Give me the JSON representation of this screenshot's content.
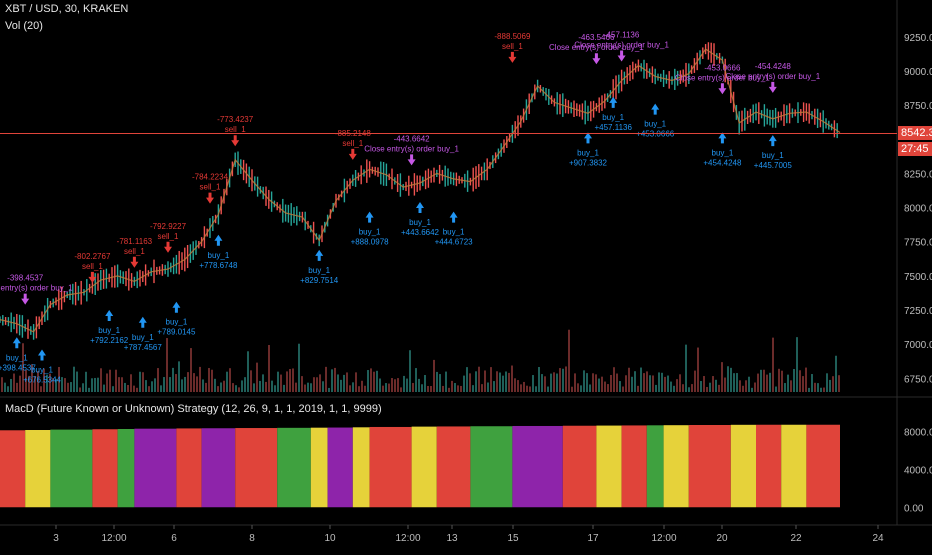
{
  "header": {
    "symbol_line": "XBT / USD, 30, KRAKEN",
    "volume_line": "Vol (20)"
  },
  "indicator_pane": {
    "label": "MacD (Future Known or Unknown) Strategy (12, 26, 9, 1, 1, 2019, 1, 1, 9999)"
  },
  "price_axis": {
    "ticks": [
      "9250.0",
      "9000.0",
      "8750.0",
      "8250.0",
      "8000.0",
      "7750.0",
      "7500.0",
      "7250.0",
      "7000.0",
      "6750.0"
    ],
    "last_price": "8542.3",
    "countdown": "27:45",
    "last_price_color": "#e0443a",
    "countdown_color": "#e0443a"
  },
  "indicator_axis": {
    "ticks": [
      "8000.00",
      "4000.00",
      "0.00"
    ]
  },
  "time_axis": {
    "ticks": [
      "3",
      "12:00",
      "6",
      "8",
      "10",
      "12:00",
      "13",
      "15",
      "17",
      "12:00",
      "20",
      "22",
      "24"
    ]
  },
  "colors": {
    "up": "#26a69a",
    "down": "#ef5350",
    "buy": "#2196f3",
    "sell": "#e53935",
    "close": "#c658e6",
    "band_red": "#e0443a",
    "band_green": "#3fa13f",
    "band_purple": "#8e24aa",
    "band_yellow": "#e6d23a"
  },
  "chart_data": {
    "type": "line",
    "price_series": {
      "name": "",
      "x_index": [
        0,
        2,
        4,
        6,
        8,
        10,
        12,
        14,
        16,
        18,
        20,
        22,
        24,
        26,
        28,
        30,
        32,
        34,
        36,
        38,
        40,
        42,
        44,
        46,
        48,
        50,
        52,
        54,
        56,
        58,
        60,
        62,
        64,
        66,
        68,
        70,
        72,
        74,
        76,
        78,
        80,
        82,
        84,
        86,
        88,
        90,
        92,
        94,
        96,
        98,
        100
      ],
      "values": [
        7180,
        7150,
        7090,
        7290,
        7360,
        7380,
        7470,
        7500,
        7460,
        7530,
        7550,
        7620,
        7750,
        7950,
        8350,
        8200,
        8060,
        7960,
        7930,
        7760,
        8050,
        8200,
        8280,
        8240,
        8150,
        8180,
        8250,
        8210,
        8190,
        8280,
        8450,
        8630,
        8890,
        8770,
        8730,
        8690,
        8780,
        8930,
        9040,
        8960,
        8930,
        8980,
        9160,
        9080,
        8620,
        8700,
        8650,
        8690,
        8700,
        8630,
        8550
      ]
    },
    "markers": [
      {
        "side": "close",
        "label": "Close entry(s) order buy_1",
        "value": "-398.4537",
        "x": 3,
        "price": 7260
      },
      {
        "side": "buy",
        "label": "buy_1",
        "value": "+398.4537",
        "x": 2,
        "price": 7080
      },
      {
        "side": "buy",
        "label": "buy_1",
        "value": "+676.5344",
        "x": 5,
        "price": 6990
      },
      {
        "side": "sell",
        "label": "sell_1",
        "value": "-802.2767",
        "x": 11,
        "price": 7420
      },
      {
        "side": "buy",
        "label": "buy_1",
        "value": "+792.2162",
        "x": 13,
        "price": 7280
      },
      {
        "side": "sell",
        "label": "sell_1",
        "value": "-781.1163",
        "x": 16,
        "price": 7530
      },
      {
        "side": "buy",
        "label": "buy_1",
        "value": "+787.4567",
        "x": 17,
        "price": 7230
      },
      {
        "side": "sell",
        "label": "sell_1",
        "value": "-792.9227",
        "x": 20,
        "price": 7640
      },
      {
        "side": "buy",
        "label": "buy_1",
        "value": "+789.0145",
        "x": 21,
        "price": 7340
      },
      {
        "side": "sell",
        "label": "sell_1",
        "value": "-784.2234",
        "x": 25,
        "price": 8000
      },
      {
        "side": "buy",
        "label": "buy_1",
        "value": "+778.6748",
        "x": 26,
        "price": 7830
      },
      {
        "side": "sell",
        "label": "sell_1",
        "value": "-773.4237",
        "x": 28,
        "price": 8420
      },
      {
        "side": "buy",
        "label": "buy_1",
        "value": "+829.7514",
        "x": 38,
        "price": 7720
      },
      {
        "side": "sell",
        "label": "sell_1",
        "value": "-885.2148",
        "x": 42,
        "price": 8320
      },
      {
        "side": "buy",
        "label": "buy_1",
        "value": "+888.0978",
        "x": 44,
        "price": 8000
      },
      {
        "side": "close",
        "label": "Close entry(s) order buy_1",
        "value": "-443.6642",
        "x": 49,
        "price": 8280
      },
      {
        "side": "buy",
        "label": "buy_1",
        "value": "+443.6642",
        "x": 50,
        "price": 8070
      },
      {
        "side": "buy",
        "label": "buy_1",
        "value": "+444.6723",
        "x": 54,
        "price": 8000
      },
      {
        "side": "sell",
        "label": "sell_1",
        "value": "-888.5069",
        "x": 61,
        "price": 9030
      },
      {
        "side": "buy",
        "label": "buy_1",
        "value": "+907.3832",
        "x": 70,
        "price": 8580
      },
      {
        "side": "close",
        "label": "Close entry(s) order buy_1",
        "value": "-463.5466",
        "x": 71,
        "price": 9020
      },
      {
        "side": "close",
        "label": "Close entry(s) order buy_1",
        "value": "-457.1136",
        "x": 74,
        "price": 9040
      },
      {
        "side": "buy",
        "label": "buy_1",
        "value": "+457.1136",
        "x": 73,
        "price": 8840
      },
      {
        "side": "buy",
        "label": "buy_1",
        "value": "+453.0666",
        "x": 78,
        "price": 8790
      },
      {
        "side": "close",
        "label": "Close entry(s) order buy_1",
        "value": "-453.0666",
        "x": 86,
        "price": 8800
      },
      {
        "side": "buy",
        "label": "buy_1",
        "value": "+454.4248",
        "x": 86,
        "price": 8580
      },
      {
        "side": "close",
        "label": "Close entry(s) order buy_1",
        "value": "-454.4248",
        "x": 92,
        "price": 8810
      },
      {
        "side": "buy",
        "label": "buy_1",
        "value": "+445.7005",
        "x": 92,
        "price": 8560
      }
    ],
    "indicator_bands": [
      {
        "from": 0,
        "to": 3,
        "color": "band_red"
      },
      {
        "from": 3,
        "to": 6,
        "color": "band_yellow"
      },
      {
        "from": 6,
        "to": 11,
        "color": "band_green"
      },
      {
        "from": 11,
        "to": 14,
        "color": "band_red"
      },
      {
        "from": 14,
        "to": 16,
        "color": "band_green"
      },
      {
        "from": 16,
        "to": 21,
        "color": "band_purple"
      },
      {
        "from": 21,
        "to": 24,
        "color": "band_red"
      },
      {
        "from": 24,
        "to": 28,
        "color": "band_purple"
      },
      {
        "from": 28,
        "to": 33,
        "color": "band_red"
      },
      {
        "from": 33,
        "to": 37,
        "color": "band_green"
      },
      {
        "from": 37,
        "to": 39,
        "color": "band_yellow"
      },
      {
        "from": 39,
        "to": 42,
        "color": "band_purple"
      },
      {
        "from": 42,
        "to": 44,
        "color": "band_yellow"
      },
      {
        "from": 44,
        "to": 49,
        "color": "band_red"
      },
      {
        "from": 49,
        "to": 52,
        "color": "band_yellow"
      },
      {
        "from": 52,
        "to": 56,
        "color": "band_red"
      },
      {
        "from": 56,
        "to": 61,
        "color": "band_green"
      },
      {
        "from": 61,
        "to": 67,
        "color": "band_purple"
      },
      {
        "from": 67,
        "to": 71,
        "color": "band_red"
      },
      {
        "from": 71,
        "to": 74,
        "color": "band_yellow"
      },
      {
        "from": 74,
        "to": 77,
        "color": "band_red"
      },
      {
        "from": 77,
        "to": 79,
        "color": "band_green"
      },
      {
        "from": 79,
        "to": 82,
        "color": "band_yellow"
      },
      {
        "from": 82,
        "to": 87,
        "color": "band_red"
      },
      {
        "from": 87,
        "to": 90,
        "color": "band_yellow"
      },
      {
        "from": 90,
        "to": 93,
        "color": "band_red"
      },
      {
        "from": 93,
        "to": 96,
        "color": "band_yellow"
      },
      {
        "from": 96,
        "to": 100,
        "color": "band_red"
      }
    ],
    "indicator_level": [
      8100,
      8200,
      8300,
      8350,
      8400,
      8500,
      8550,
      8600,
      8650,
      8700,
      8700
    ]
  }
}
